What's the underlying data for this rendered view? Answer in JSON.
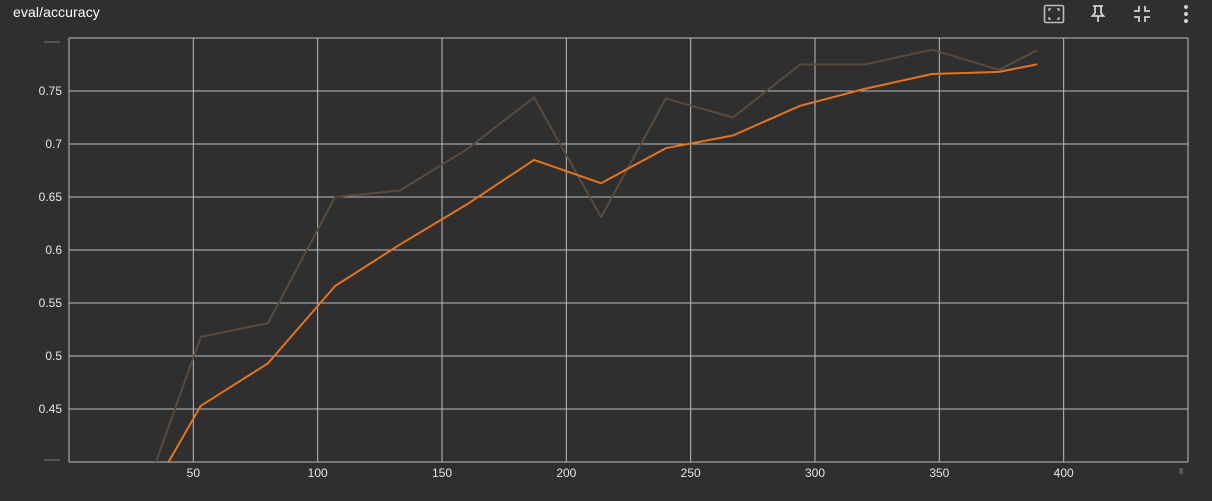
{
  "header": {
    "title": "eval/accuracy"
  },
  "toolbar": {
    "icons": [
      "fit-domain-icon",
      "pin-icon",
      "collapse-icon",
      "more-vert-icon"
    ]
  },
  "colors": {
    "background": "#2f2f2f",
    "grid": "#bdbdbd",
    "smoothed": "#e5731f",
    "raw": "#5a4a3c",
    "text": "#e6e6e6"
  },
  "chart_data": {
    "type": "line",
    "title": "eval/accuracy",
    "xlabel": "",
    "ylabel": "",
    "xlim": [
      0,
      450
    ],
    "ylim": [
      0.4,
      0.8
    ],
    "x_ticks": [
      50,
      100,
      150,
      200,
      250,
      300,
      350,
      400
    ],
    "y_ticks": [
      0.45,
      0.5,
      0.55,
      0.6,
      0.65,
      0.7,
      0.75
    ],
    "grid": true,
    "series": [
      {
        "role": "raw",
        "color": "#5a4a3c",
        "x": [
          35,
          53,
          80,
          107,
          133,
          160,
          187,
          214,
          240,
          267,
          294,
          320,
          347,
          374,
          389
        ],
        "y": [
          0.4,
          0.518,
          0.531,
          0.65,
          0.656,
          0.695,
          0.744,
          0.631,
          0.743,
          0.725,
          0.775,
          0.775,
          0.789,
          0.77,
          0.788
        ]
      },
      {
        "role": "smoothed",
        "color": "#e5731f",
        "x": [
          40,
          53,
          80,
          107,
          133,
          160,
          187,
          214,
          240,
          267,
          294,
          320,
          347,
          374,
          389
        ],
        "y": [
          0.4,
          0.453,
          0.493,
          0.566,
          0.605,
          0.643,
          0.685,
          0.663,
          0.696,
          0.708,
          0.736,
          0.752,
          0.766,
          0.768,
          0.775
        ]
      }
    ]
  }
}
